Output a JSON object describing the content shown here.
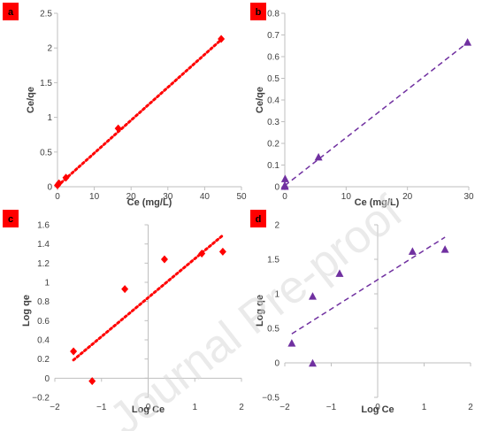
{
  "watermark": "Journal Pre-proof",
  "colors": {
    "red": "#ff0000",
    "purple": "#7030a0",
    "tag_bg": "#ff0000",
    "axis": "#bfbfbf"
  },
  "chart_data": [
    {
      "panel": "a",
      "type": "scatter",
      "xlabel": "Ce (mg/L)",
      "ylabel": "Ce/qe",
      "xlim": [
        0,
        50
      ],
      "ylim": [
        0,
        2.5
      ],
      "xticks": [
        0,
        10,
        20,
        30,
        40,
        50
      ],
      "yticks": [
        0,
        0.5,
        1,
        1.5,
        2,
        2.5
      ],
      "marker": "diamond",
      "color": "#ff0000",
      "points": [
        [
          0,
          0.02
        ],
        [
          0.4,
          0.05
        ],
        [
          2.3,
          0.13
        ],
        [
          16.5,
          0.84
        ],
        [
          44.5,
          2.13
        ]
      ],
      "trendline": {
        "style": "dotted",
        "from": [
          0,
          0.01
        ],
        "to": [
          44.5,
          2.12
        ]
      }
    },
    {
      "panel": "b",
      "type": "scatter",
      "xlabel": "Ce (mg/L)",
      "ylabel": "Ce/qe",
      "xlim": [
        0,
        30
      ],
      "ylim": [
        0,
        0.8
      ],
      "xticks": [
        0,
        10,
        20,
        30
      ],
      "yticks": [
        0,
        0.1,
        0.2,
        0.3,
        0.4,
        0.5,
        0.6,
        0.7,
        0.8
      ],
      "marker": "triangle",
      "color": "#7030a0",
      "points": [
        [
          0,
          0.0
        ],
        [
          0,
          0.005
        ],
        [
          0.05,
          0.035
        ],
        [
          5.5,
          0.135
        ],
        [
          29.8,
          0.665
        ]
      ],
      "trendline": {
        "style": "dashed",
        "from": [
          0,
          0.005
        ],
        "to": [
          29.8,
          0.665
        ]
      }
    },
    {
      "panel": "c",
      "type": "scatter",
      "xlabel": "Log Ce",
      "ylabel": "Log qe",
      "xlim": [
        -2,
        2
      ],
      "ylim": [
        -0.2,
        1.6
      ],
      "xticks": [
        -2,
        -1,
        0,
        1,
        2
      ],
      "yticks": [
        -0.2,
        0,
        0.2,
        0.4,
        0.6,
        0.8,
        1,
        1.2,
        1.4,
        1.6
      ],
      "marker": "diamond",
      "color": "#ff0000",
      "points": [
        [
          -1.6,
          0.28
        ],
        [
          -1.2,
          -0.03
        ],
        [
          -0.5,
          0.93
        ],
        [
          0.35,
          1.24
        ],
        [
          1.15,
          1.3
        ],
        [
          1.6,
          1.32
        ]
      ],
      "trendline": {
        "style": "dotted",
        "from": [
          -1.6,
          0.19
        ],
        "to": [
          1.6,
          1.49
        ]
      }
    },
    {
      "panel": "d",
      "type": "scatter",
      "xlabel": "Log Ce",
      "ylabel": "Log qe",
      "xlim": [
        -2,
        2
      ],
      "ylim": [
        -0.5,
        2
      ],
      "xticks": [
        -2,
        -1,
        0,
        1,
        2
      ],
      "yticks": [
        -0.5,
        0,
        0.5,
        1,
        1.5,
        2
      ],
      "marker": "triangle",
      "color": "#7030a0",
      "points": [
        [
          -1.85,
          0.28
        ],
        [
          -1.4,
          0.96
        ],
        [
          -1.4,
          -0.01
        ],
        [
          -0.82,
          1.29
        ],
        [
          0.75,
          1.61
        ],
        [
          1.45,
          1.64
        ]
      ],
      "trendline": {
        "style": "dashed",
        "from": [
          -1.85,
          0.42
        ],
        "to": [
          1.45,
          1.82
        ]
      }
    }
  ]
}
